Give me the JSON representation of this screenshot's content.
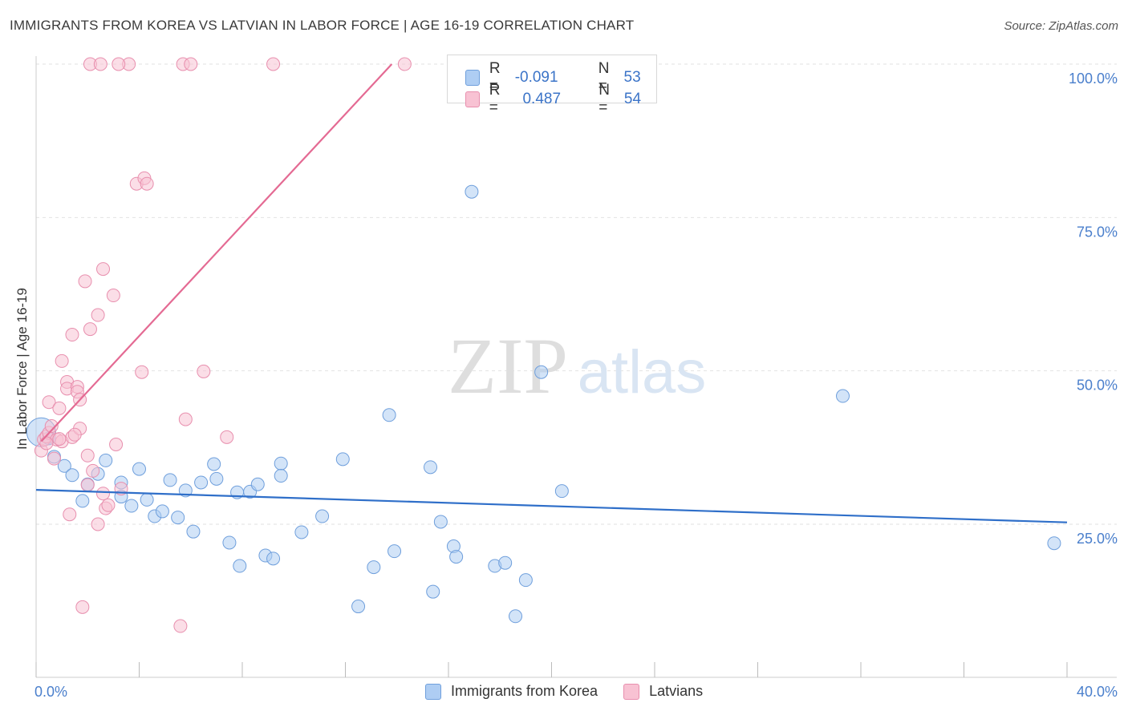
{
  "title": "IMMIGRANTS FROM KOREA VS LATVIAN IN LABOR FORCE | AGE 16-19 CORRELATION CHART",
  "source": "Source: ZipAtlas.com",
  "watermark": {
    "zip": "ZIP",
    "atlas": "atlas"
  },
  "top_legend": [
    {
      "r_label": "R =",
      "r_value": "-0.091",
      "n_label": "N =",
      "n_value": "53",
      "color": "#aecdf3",
      "border": "#6f9fdc"
    },
    {
      "r_label": "R =",
      "r_value": "0.487",
      "n_label": "N =",
      "n_value": "54",
      "color": "#f8c2d3",
      "border": "#e88fae"
    }
  ],
  "bottom_legend": [
    {
      "label": "Immigrants from Korea",
      "color": "#aecdf3",
      "border": "#6f9fdc"
    },
    {
      "label": "Latvians",
      "color": "#f8c2d3",
      "border": "#e88fae"
    }
  ],
  "chart_data": {
    "type": "scatter",
    "title": "IMMIGRANTS FROM KOREA VS LATVIAN IN LABOR FORCE | AGE 16-19 CORRELATION CHART",
    "xlabel": "",
    "ylabel": "In Labor Force | Age 16-19",
    "xlim": [
      0,
      40
    ],
    "ylim": [
      0,
      101
    ],
    "x_tick_labels": [
      "0.0%",
      "40.0%"
    ],
    "y_tick_labels": [
      "100.0%",
      "75.0%",
      "50.0%",
      "25.0%"
    ],
    "y_tick_values": [
      100,
      75,
      50,
      25
    ],
    "grid": true,
    "series": [
      {
        "name": "Immigrants from Korea",
        "color": "#6f9fdc",
        "fill": "#aecdf3",
        "trend": {
          "x": [
            0,
            40
          ],
          "y": [
            30.6,
            25.3
          ],
          "color": "#2f6fc9"
        },
        "points": [
          [
            0.2,
            40.0
          ],
          [
            0.7,
            36.0
          ],
          [
            1.1,
            34.5
          ],
          [
            1.4,
            33.0
          ],
          [
            1.8,
            28.8
          ],
          [
            2.0,
            31.5
          ],
          [
            2.4,
            33.2
          ],
          [
            2.7,
            35.4
          ],
          [
            3.3,
            29.5
          ],
          [
            3.3,
            31.8
          ],
          [
            3.7,
            28.0
          ],
          [
            4.0,
            34.0
          ],
          [
            4.3,
            29.0
          ],
          [
            4.6,
            26.3
          ],
          [
            4.9,
            27.1
          ],
          [
            5.2,
            32.2
          ],
          [
            5.5,
            26.1
          ],
          [
            5.8,
            30.5
          ],
          [
            6.1,
            23.8
          ],
          [
            6.4,
            31.8
          ],
          [
            6.9,
            34.8
          ],
          [
            7.0,
            32.4
          ],
          [
            7.5,
            22.0
          ],
          [
            7.8,
            30.2
          ],
          [
            7.9,
            18.2
          ],
          [
            8.3,
            30.3
          ],
          [
            8.6,
            31.5
          ],
          [
            8.9,
            19.9
          ],
          [
            9.2,
            19.4
          ],
          [
            9.5,
            34.9
          ],
          [
            9.5,
            32.9
          ],
          [
            10.3,
            23.7
          ],
          [
            11.1,
            26.3
          ],
          [
            11.9,
            35.6
          ],
          [
            12.5,
            11.6
          ],
          [
            13.1,
            18.0
          ],
          [
            13.7,
            42.8
          ],
          [
            13.9,
            20.6
          ],
          [
            15.3,
            34.3
          ],
          [
            15.4,
            14.0
          ],
          [
            15.7,
            25.4
          ],
          [
            16.2,
            21.4
          ],
          [
            16.3,
            19.7
          ],
          [
            16.9,
            79.2
          ],
          [
            17.8,
            18.2
          ],
          [
            18.2,
            18.7
          ],
          [
            18.6,
            10.0
          ],
          [
            19.0,
            15.9
          ],
          [
            19.6,
            49.8
          ],
          [
            20.4,
            30.4
          ],
          [
            31.3,
            45.9
          ],
          [
            39.5,
            21.9
          ],
          [
            0.5,
            39.0
          ]
        ]
      },
      {
        "name": "Latvians",
        "color": "#e88fae",
        "fill": "#f8c2d3",
        "trend": {
          "x": [
            0.2,
            13.8
          ],
          "y": [
            38.5,
            100.0
          ],
          "color": "#e46a93"
        },
        "points": [
          [
            0.2,
            37.0
          ],
          [
            0.3,
            38.8
          ],
          [
            0.4,
            39.3
          ],
          [
            0.5,
            39.9
          ],
          [
            0.5,
            44.9
          ],
          [
            0.6,
            41.0
          ],
          [
            0.7,
            35.7
          ],
          [
            0.8,
            38.8
          ],
          [
            0.9,
            43.9
          ],
          [
            1.0,
            51.6
          ],
          [
            1.0,
            38.5
          ],
          [
            1.2,
            48.2
          ],
          [
            1.2,
            47.1
          ],
          [
            1.3,
            26.6
          ],
          [
            1.4,
            39.2
          ],
          [
            1.4,
            55.9
          ],
          [
            1.6,
            47.4
          ],
          [
            1.6,
            46.6
          ],
          [
            1.7,
            45.3
          ],
          [
            1.7,
            40.6
          ],
          [
            1.8,
            11.5
          ],
          [
            1.9,
            64.6
          ],
          [
            2.0,
            31.4
          ],
          [
            2.0,
            36.2
          ],
          [
            2.1,
            56.8
          ],
          [
            2.2,
            33.7
          ],
          [
            2.4,
            59.1
          ],
          [
            2.4,
            25.0
          ],
          [
            2.6,
            66.6
          ],
          [
            2.6,
            30.0
          ],
          [
            2.7,
            27.6
          ],
          [
            2.8,
            28.1
          ],
          [
            3.0,
            62.3
          ],
          [
            3.1,
            38.0
          ],
          [
            3.3,
            30.8
          ],
          [
            3.6,
            100.0
          ],
          [
            2.1,
            100.0
          ],
          [
            2.5,
            100.0
          ],
          [
            3.2,
            100.0
          ],
          [
            3.9,
            80.5
          ],
          [
            4.2,
            81.4
          ],
          [
            4.3,
            80.5
          ],
          [
            4.1,
            49.8
          ],
          [
            5.6,
            8.4
          ],
          [
            5.8,
            42.1
          ],
          [
            5.7,
            100.0
          ],
          [
            6.0,
            100.0
          ],
          [
            6.5,
            49.9
          ],
          [
            7.4,
            39.2
          ],
          [
            9.2,
            100.0
          ],
          [
            14.3,
            100.0
          ],
          [
            0.4,
            38.2
          ],
          [
            0.9,
            38.9
          ],
          [
            1.5,
            39.6
          ]
        ]
      }
    ]
  }
}
